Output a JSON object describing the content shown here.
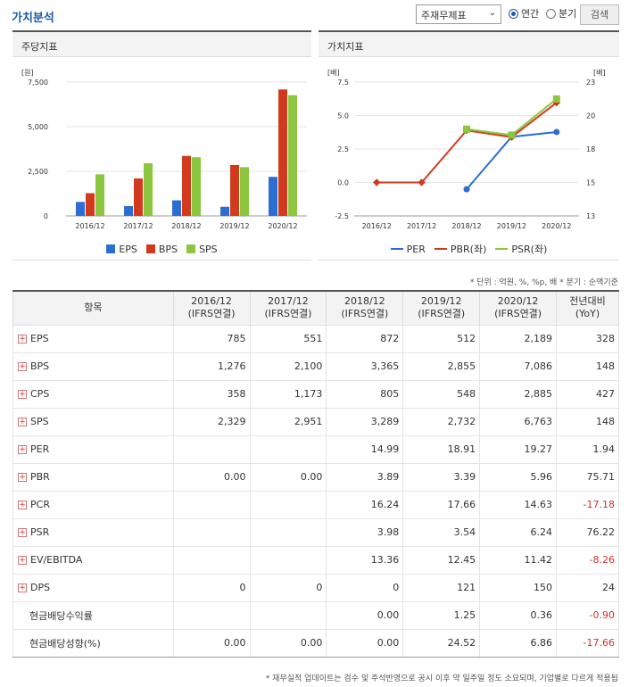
{
  "header": {
    "title": "가치분석",
    "select_value": "주재무제표",
    "radio_annual": "연간",
    "radio_quarter": "분기",
    "search_button": "검색"
  },
  "left_panel": {
    "title": "주당지표",
    "unit": "[원]"
  },
  "right_panel": {
    "title": "가치지표",
    "unit_left": "[배]",
    "unit_right": "[배]"
  },
  "note_units": "* 단위 : 억원, %, %p, 배    * 분기 : 순액기준",
  "note_bottom": "* 재무실적 업데이트는 검수 및 주석반영으로 공시 이후 약 일주일 정도 소요되며, 기업별로 다르게 적용됩",
  "chart_data": [
    {
      "type": "bar",
      "categories": [
        "2016/12",
        "2017/12",
        "2018/12",
        "2019/12",
        "2020/12"
      ],
      "series": [
        {
          "name": "EPS",
          "values": [
            785,
            551,
            872,
            512,
            2189
          ],
          "color": "#2a6ed4"
        },
        {
          "name": "BPS",
          "values": [
            1276,
            2100,
            3365,
            2855,
            7086
          ],
          "color": "#d23a1e"
        },
        {
          "name": "SPS",
          "values": [
            2329,
            2951,
            3289,
            2732,
            6763
          ],
          "color": "#8cc63e"
        }
      ],
      "ylim": [
        0,
        7500
      ],
      "yticks": [
        "0",
        "2,500",
        "5,000",
        "7,500"
      ],
      "ylabel": "[원]",
      "legend": "bottom"
    },
    {
      "type": "line",
      "categories": [
        "2016/12",
        "2017/12",
        "2018/12",
        "2019/12",
        "2020/12"
      ],
      "series": [
        {
          "name": "PER",
          "values": [
            null,
            null,
            14.99,
            18.91,
            19.27
          ],
          "axis": "right",
          "color": "#2a6ed4"
        },
        {
          "name": "PBR(좌)",
          "values": [
            0.0,
            0.0,
            3.89,
            3.39,
            5.96
          ],
          "axis": "left",
          "color": "#d23a1e"
        },
        {
          "name": "PSR(좌)",
          "values": [
            null,
            null,
            3.98,
            3.54,
            6.24
          ],
          "axis": "left",
          "color": "#8cc63e"
        }
      ],
      "ylim_left": [
        -2.5,
        7.5
      ],
      "yticks_left": [
        "-2.5",
        "0.0",
        "2.5",
        "5.0",
        "7.5"
      ],
      "ylim_right": [
        13,
        23
      ],
      "yticks_right": [
        "13",
        "15",
        "18",
        "20",
        "23"
      ],
      "ylabel_left": "[배]",
      "ylabel_right": "[배]",
      "legend": "bottom"
    }
  ],
  "table": {
    "headers": [
      "항목",
      "2016/12\n(IFRS연결)",
      "2017/12\n(IFRS연결)",
      "2018/12\n(IFRS연결)",
      "2019/12\n(IFRS연결)",
      "2020/12\n(IFRS연결)",
      "전년대비\n(YoY)"
    ],
    "rows": [
      {
        "label": "EPS",
        "icon": true,
        "values": [
          "785",
          "551",
          "872",
          "512",
          "2,189",
          "328"
        ]
      },
      {
        "label": "BPS",
        "icon": true,
        "values": [
          "1,276",
          "2,100",
          "3,365",
          "2,855",
          "7,086",
          "148"
        ]
      },
      {
        "label": "CPS",
        "icon": true,
        "values": [
          "358",
          "1,173",
          "805",
          "548",
          "2,885",
          "427"
        ]
      },
      {
        "label": "SPS",
        "icon": true,
        "values": [
          "2,329",
          "2,951",
          "3,289",
          "2,732",
          "6,763",
          "148"
        ]
      },
      {
        "label": "PER",
        "icon": true,
        "values": [
          "",
          "",
          "14.99",
          "18.91",
          "19.27",
          "1.94"
        ]
      },
      {
        "label": "PBR",
        "icon": true,
        "values": [
          "0.00",
          "0.00",
          "3.89",
          "3.39",
          "5.96",
          "75.71"
        ]
      },
      {
        "label": "PCR",
        "icon": true,
        "values": [
          "",
          "",
          "16.24",
          "17.66",
          "14.63",
          "-17.18"
        ]
      },
      {
        "label": "PSR",
        "icon": true,
        "values": [
          "",
          "",
          "3.98",
          "3.54",
          "6.24",
          "76.22"
        ]
      },
      {
        "label": "EV/EBITDA",
        "icon": true,
        "values": [
          "",
          "",
          "13.36",
          "12.45",
          "11.42",
          "-8.26"
        ]
      },
      {
        "label": "DPS",
        "icon": true,
        "values": [
          "0",
          "0",
          "0",
          "121",
          "150",
          "24"
        ]
      },
      {
        "label": "현금배당수익률",
        "icon": false,
        "values": [
          "",
          "",
          "0.00",
          "1.25",
          "0.36",
          "-0.90"
        ]
      },
      {
        "label": "현금배당성향(%)",
        "icon": false,
        "values": [
          "0.00",
          "0.00",
          "0.00",
          "24.52",
          "6.86",
          "-17.66"
        ]
      }
    ]
  },
  "colors": {
    "accent": "#1e5aa8",
    "negative": "#d32f2f"
  }
}
